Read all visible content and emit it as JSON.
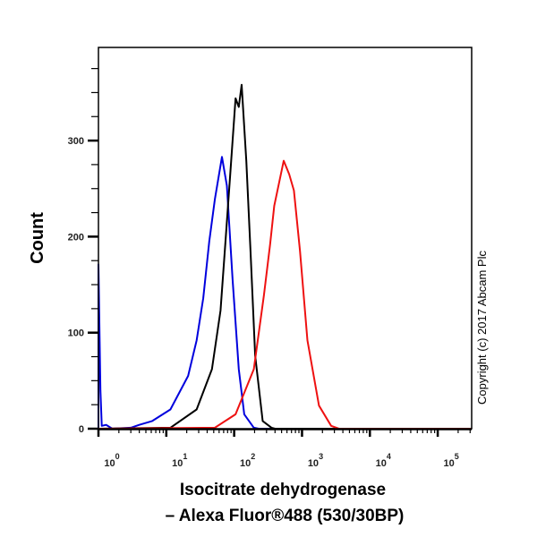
{
  "chart_data": {
    "type": "line",
    "xscale": "log",
    "xlim": [
      1,
      316228
    ],
    "ylim": [
      0,
      397
    ],
    "ylabel": "Count",
    "xlabel_lines": [
      "Isocitrate dehydrogenase",
      "– Alexa Fluor®488 (530/30BP)"
    ],
    "yticks": [
      0,
      100,
      200,
      300
    ],
    "ytick_labels": [
      "0",
      "100",
      "200",
      "300"
    ],
    "xticks": [
      1,
      10,
      100,
      1000,
      10000,
      100000
    ],
    "xtick_labels": [
      [
        "10",
        "0"
      ],
      [
        "10",
        "1"
      ],
      [
        "10",
        "2"
      ],
      [
        "10",
        "3"
      ],
      [
        "10",
        "4"
      ],
      [
        "10",
        "5"
      ]
    ],
    "grid": false,
    "annotation": "Copyright (c) 2017 Abcam Plc",
    "series": [
      {
        "color": "#0000dd",
        "points": [
          [
            1,
            0
          ],
          [
            1,
            171
          ],
          [
            1.07,
            40
          ],
          [
            1.12,
            3
          ],
          [
            1.3,
            4
          ],
          [
            1.6,
            0
          ],
          [
            3,
            1
          ],
          [
            4,
            4
          ],
          [
            6.2,
            8
          ],
          [
            11.5,
            20
          ],
          [
            21,
            55
          ],
          [
            28,
            92
          ],
          [
            35,
            136
          ],
          [
            43,
            195
          ],
          [
            52,
            239
          ],
          [
            66,
            283
          ],
          [
            78,
            253
          ],
          [
            95,
            155
          ],
          [
            117,
            62
          ],
          [
            141,
            15
          ],
          [
            195,
            1
          ],
          [
            230,
            0
          ],
          [
            316228,
            0
          ]
        ]
      },
      {
        "color": "#000000",
        "points": [
          [
            1,
            0
          ],
          [
            11.5,
            1
          ],
          [
            28,
            20
          ],
          [
            47,
            62
          ],
          [
            63,
            123
          ],
          [
            74,
            192
          ],
          [
            87,
            263
          ],
          [
            105,
            344
          ],
          [
            117,
            335
          ],
          [
            129,
            358
          ],
          [
            151,
            279
          ],
          [
            174,
            185
          ],
          [
            204,
            76
          ],
          [
            263,
            8
          ],
          [
            355,
            1
          ],
          [
            400,
            0
          ],
          [
            316228,
            0
          ]
        ]
      },
      {
        "color": "#ee1111",
        "points": [
          [
            1,
            0
          ],
          [
            52,
            1
          ],
          [
            105,
            15
          ],
          [
            195,
            62
          ],
          [
            275,
            139
          ],
          [
            339,
            192
          ],
          [
            389,
            232
          ],
          [
            537,
            279
          ],
          [
            646,
            265
          ],
          [
            759,
            248
          ],
          [
            933,
            185
          ],
          [
            1200,
            92
          ],
          [
            1780,
            24
          ],
          [
            2690,
            3
          ],
          [
            3500,
            0
          ],
          [
            316228,
            0
          ]
        ]
      }
    ]
  }
}
